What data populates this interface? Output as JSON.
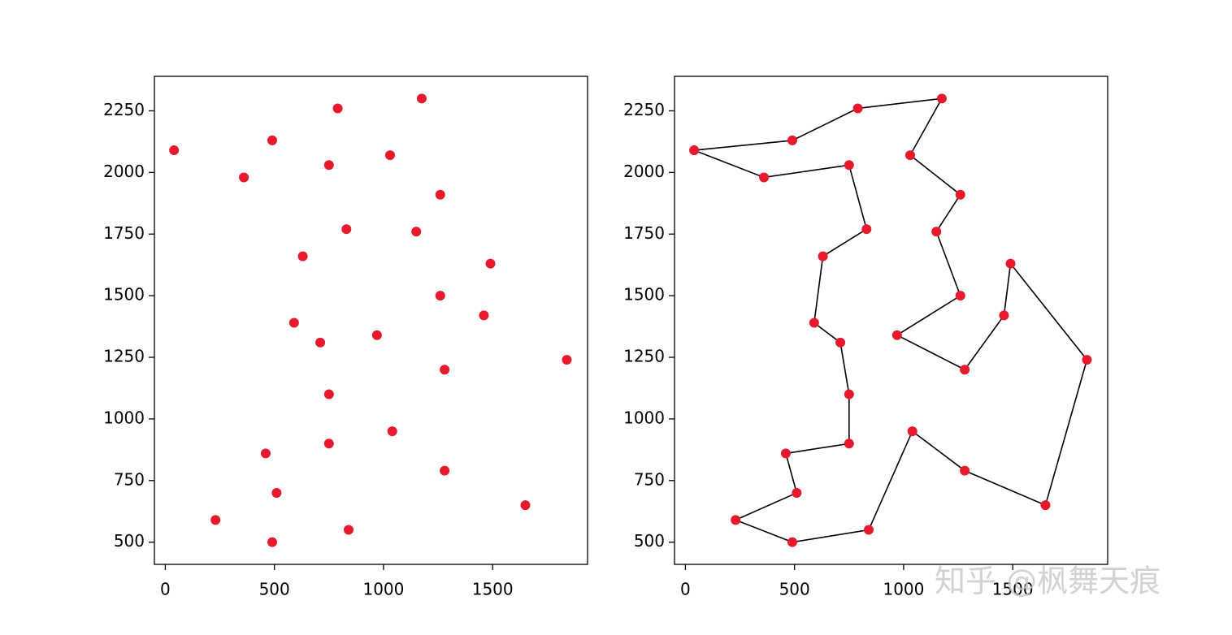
{
  "chart_data": [
    {
      "type": "scatter",
      "color": "#e8192c",
      "x": [
        40,
        790,
        1175,
        490,
        1030,
        360,
        750,
        1260,
        830,
        1150,
        630,
        1490,
        1260,
        590,
        1460,
        710,
        970,
        1840,
        1280,
        750,
        1040,
        460,
        750,
        1280,
        510,
        1650,
        230,
        490,
        840
      ],
      "values": [
        2090,
        2260,
        2300,
        2130,
        2070,
        1980,
        2030,
        1910,
        1770,
        1760,
        1660,
        1630,
        1500,
        1390,
        1420,
        1310,
        1340,
        1240,
        1200,
        1100,
        950,
        860,
        900,
        790,
        700,
        650,
        590,
        500,
        550
      ],
      "xlim": [
        -50,
        1935
      ],
      "ylim": [
        410,
        2390
      ],
      "xticks": [
        0,
        500,
        1000,
        1500
      ],
      "yticks": [
        500,
        750,
        1000,
        1250,
        1500,
        1750,
        2000,
        2250
      ]
    },
    {
      "type": "line",
      "color": "#000000",
      "marker_color": "#e8192c",
      "x": [
        40,
        490,
        790,
        1175,
        1030,
        1260,
        1150,
        1260,
        970,
        1280,
        1460,
        1490,
        1840,
        1650,
        1280,
        1040,
        840,
        490,
        230,
        510,
        460,
        750,
        750,
        710,
        590,
        630,
        830,
        750,
        360,
        40
      ],
      "values": [
        2090,
        2130,
        2260,
        2300,
        2070,
        1910,
        1760,
        1500,
        1340,
        1200,
        1420,
        1630,
        1240,
        650,
        790,
        950,
        550,
        500,
        590,
        700,
        860,
        900,
        1100,
        1310,
        1390,
        1660,
        1770,
        2030,
        1980,
        2090
      ],
      "xlim": [
        -50,
        1935
      ],
      "ylim": [
        410,
        2390
      ],
      "xticks": [
        0,
        500,
        1000,
        1500
      ],
      "yticks": [
        500,
        750,
        1000,
        1250,
        1500,
        1750,
        2000,
        2250
      ]
    }
  ],
  "watermark": "知乎 @枫舞天痕"
}
